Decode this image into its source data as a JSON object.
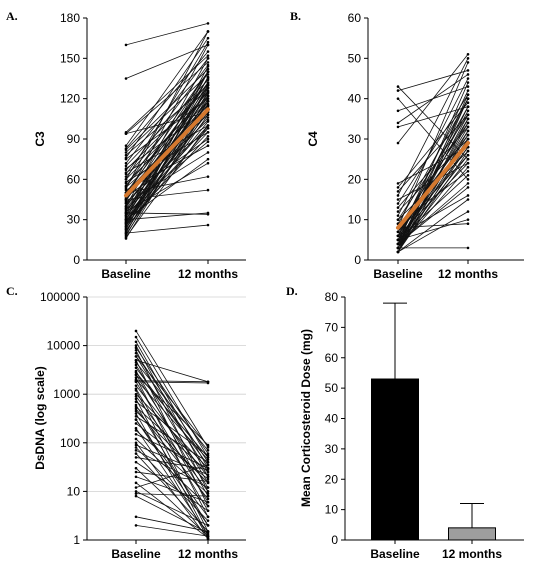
{
  "chart_data": [
    {
      "panel": "A.",
      "type": "line",
      "ylabel": "C3",
      "categories": [
        "Baseline",
        "12 months"
      ],
      "ylim": [
        0,
        180
      ],
      "yticks": [
        0,
        30,
        60,
        90,
        120,
        150,
        180
      ],
      "y_tick_labels": [
        "0",
        "30",
        "60",
        "90",
        "120",
        "150",
        "180"
      ],
      "scale": "linear",
      "grid": false,
      "individual": [
        [
          160,
          176
        ],
        [
          135,
          160
        ],
        [
          95,
          152
        ],
        [
          94,
          147
        ],
        [
          94,
          110
        ],
        [
          85,
          170
        ],
        [
          83,
          155
        ],
        [
          82,
          142
        ],
        [
          80,
          138
        ],
        [
          78,
          130
        ],
        [
          76,
          165
        ],
        [
          75,
          120
        ],
        [
          72,
          150
        ],
        [
          70,
          134
        ],
        [
          68,
          112
        ],
        [
          67,
          128
        ],
        [
          65,
          100
        ],
        [
          64,
          145
        ],
        [
          62,
          131
        ],
        [
          60,
          122
        ],
        [
          60,
          162
        ],
        [
          58,
          95
        ],
        [
          57,
          118
        ],
        [
          55,
          140
        ],
        [
          55,
          125
        ],
        [
          54,
          108
        ],
        [
          53,
          170
        ],
        [
          52,
          85
        ],
        [
          50,
          132
        ],
        [
          50,
          115
        ],
        [
          48,
          140
        ],
        [
          48,
          104
        ],
        [
          47,
          90
        ],
        [
          46,
          160
        ],
        [
          45,
          126
        ],
        [
          45,
          118
        ],
        [
          44,
          135
        ],
        [
          43,
          98
        ],
        [
          42,
          112
        ],
        [
          42,
          80
        ],
        [
          40,
          150
        ],
        [
          40,
          122
        ],
        [
          39,
          130
        ],
        [
          38,
          88
        ],
        [
          38,
          116
        ],
        [
          37,
          106
        ],
        [
          36,
          72
        ],
        [
          35,
          140
        ],
        [
          35,
          128
        ],
        [
          34,
          112
        ],
        [
          33,
          100
        ],
        [
          33,
          136
        ],
        [
          32,
          124
        ],
        [
          31,
          95
        ],
        [
          30,
          118
        ],
        [
          30,
          75
        ],
        [
          30,
          144
        ],
        [
          29,
          110
        ],
        [
          28,
          120
        ],
        [
          28,
          103
        ],
        [
          27,
          132
        ],
        [
          27,
          92
        ],
        [
          26,
          125
        ],
        [
          25,
          114
        ],
        [
          25,
          140
        ],
        [
          24,
          98
        ],
        [
          23,
          128
        ],
        [
          23,
          136
        ],
        [
          22,
          108
        ],
        [
          21,
          118
        ],
        [
          20,
          130
        ],
        [
          19,
          112
        ],
        [
          18,
          122
        ],
        [
          17,
          100
        ],
        [
          16,
          115
        ],
        [
          30,
          35
        ],
        [
          35,
          34
        ],
        [
          45,
          52
        ],
        [
          50,
          62
        ],
        [
          20,
          26
        ]
      ],
      "mean": [
        48,
        112
      ],
      "mean_color": "#D4782F"
    },
    {
      "panel": "B.",
      "type": "line",
      "ylabel": "C4",
      "categories": [
        "Baseline",
        "12 months"
      ],
      "ylim": [
        0,
        60
      ],
      "yticks": [
        0,
        10,
        20,
        30,
        40,
        50,
        60
      ],
      "y_tick_labels": [
        "0",
        "10",
        "20",
        "30",
        "40",
        "50",
        "60"
      ],
      "scale": "linear",
      "grid": false,
      "individual": [
        [
          43,
          25
        ],
        [
          42,
          47
        ],
        [
          40,
          20
        ],
        [
          37,
          43
        ],
        [
          34,
          46
        ],
        [
          33,
          38
        ],
        [
          29,
          51
        ],
        [
          19,
          28
        ],
        [
          18,
          39
        ],
        [
          17,
          36
        ],
        [
          16,
          50
        ],
        [
          15,
          24
        ],
        [
          14,
          41
        ],
        [
          13,
          33
        ],
        [
          12,
          30
        ],
        [
          11,
          45
        ],
        [
          10,
          27
        ],
        [
          10,
          36
        ],
        [
          9,
          22
        ],
        [
          9,
          40
        ],
        [
          8,
          31
        ],
        [
          8,
          34
        ],
        [
          8,
          49
        ],
        [
          7,
          26
        ],
        [
          7,
          38
        ],
        [
          7,
          29
        ],
        [
          6,
          42
        ],
        [
          6,
          32
        ],
        [
          6,
          24
        ],
        [
          6,
          35
        ],
        [
          5,
          28
        ],
        [
          5,
          40
        ],
        [
          5,
          30
        ],
        [
          5,
          21
        ],
        [
          5,
          37
        ],
        [
          4,
          33
        ],
        [
          4,
          26
        ],
        [
          4,
          44
        ],
        [
          4,
          31
        ],
        [
          4,
          19
        ],
        [
          4,
          36
        ],
        [
          3,
          28
        ],
        [
          3,
          41
        ],
        [
          3,
          23
        ],
        [
          3,
          34
        ],
        [
          3,
          30
        ],
        [
          3,
          38
        ],
        [
          3,
          25
        ],
        [
          2,
          32
        ],
        [
          2,
          40
        ],
        [
          2,
          29
        ],
        [
          2,
          35
        ],
        [
          2,
          27
        ],
        [
          2,
          15
        ],
        [
          2,
          12
        ],
        [
          8,
          9
        ],
        [
          3,
          3
        ],
        [
          5,
          10
        ],
        [
          6,
          16
        ],
        [
          4,
          18
        ]
      ],
      "mean": [
        8,
        29
      ],
      "mean_color": "#D4782F"
    },
    {
      "panel": "C.",
      "type": "line",
      "ylabel": "DsDNA (log scale)",
      "categories": [
        "Baseline",
        "12 months"
      ],
      "ylim": [
        1,
        100000
      ],
      "yticks": [
        1,
        10,
        100,
        1000,
        10000,
        100000
      ],
      "y_tick_labels": [
        "1",
        "10",
        "100",
        "1000",
        "10000",
        "100000"
      ],
      "scale": "log",
      "grid": true,
      "individual": [
        [
          20000,
          80
        ],
        [
          15000,
          50
        ],
        [
          12000,
          30
        ],
        [
          10000,
          20
        ],
        [
          9000,
          60
        ],
        [
          8000,
          10
        ],
        [
          7000,
          40
        ],
        [
          6000,
          25
        ],
        [
          5000,
          1800
        ],
        [
          5000,
          5
        ],
        [
          4500,
          70
        ],
        [
          4000,
          15
        ],
        [
          3500,
          35
        ],
        [
          3000,
          8
        ],
        [
          2800,
          50
        ],
        [
          2500,
          12
        ],
        [
          2200,
          3
        ],
        [
          2000,
          45
        ],
        [
          1800,
          6
        ],
        [
          1500,
          20
        ],
        [
          1300,
          4
        ],
        [
          1200,
          1.5
        ],
        [
          1000,
          30
        ],
        [
          900,
          10
        ],
        [
          800,
          1.2
        ],
        [
          700,
          55
        ],
        [
          600,
          2
        ],
        [
          550,
          25
        ],
        [
          500,
          7
        ],
        [
          450,
          15
        ],
        [
          400,
          1.1
        ],
        [
          350,
          40
        ],
        [
          300,
          3
        ],
        [
          250,
          18
        ],
        [
          200,
          1.3
        ],
        [
          180,
          9
        ],
        [
          150,
          30
        ],
        [
          120,
          5
        ],
        [
          100,
          1.05
        ],
        [
          90,
          22
        ],
        [
          80,
          2.5
        ],
        [
          70,
          12
        ],
        [
          60,
          1.5
        ],
        [
          50,
          28
        ],
        [
          40,
          4
        ],
        [
          30,
          1.2
        ],
        [
          25,
          16
        ],
        [
          20,
          6
        ],
        [
          15,
          1.1
        ],
        [
          12,
          35
        ],
        [
          10,
          2
        ],
        [
          9,
          8
        ],
        [
          8,
          1.4
        ],
        [
          3,
          1.5
        ],
        [
          2,
          1.2
        ],
        [
          1800,
          1700
        ],
        [
          1900,
          1800
        ],
        [
          2500,
          90
        ],
        [
          6000,
          85
        ],
        [
          300,
          2
        ]
      ]
    },
    {
      "panel": "D.",
      "type": "bar",
      "ylabel": "Mean Corticosteroid Dose (mg)",
      "categories": [
        "Baseline",
        "12 months"
      ],
      "values": [
        53,
        4
      ],
      "error": [
        25,
        8
      ],
      "bar_colors": [
        "#000000",
        "#9E9E9E"
      ],
      "ylim": [
        0,
        80
      ],
      "yticks": [
        0,
        10,
        20,
        30,
        40,
        50,
        60,
        70,
        80
      ],
      "y_tick_labels": [
        "0",
        "10",
        "20",
        "30",
        "40",
        "50",
        "60",
        "70",
        "80"
      ],
      "grid": false
    }
  ]
}
